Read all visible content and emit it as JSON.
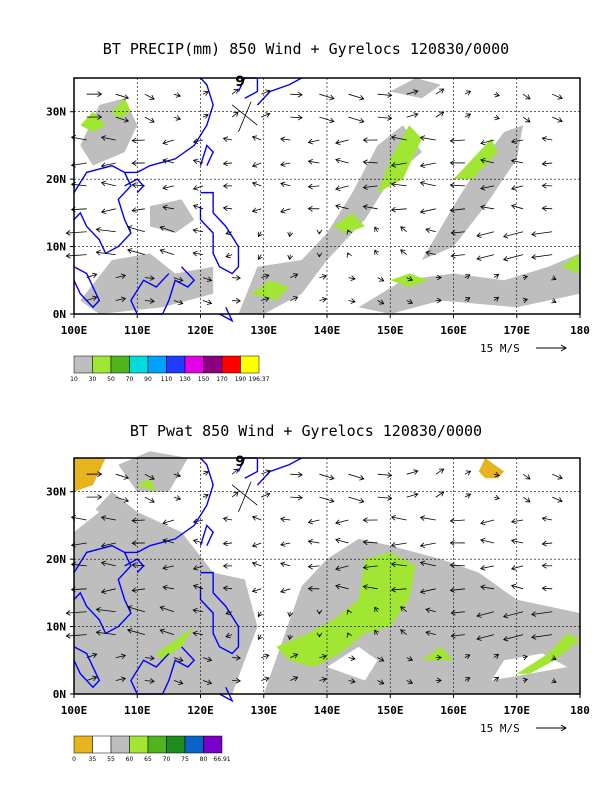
{
  "panels": [
    {
      "id": "precip",
      "title": "BT PRECIP(mm) 850 Wind + Gyrelocs 120830/0000",
      "xticks": [
        "100E",
        "110E",
        "120E",
        "130E",
        "140E",
        "150E",
        "160E",
        "170E",
        "180"
      ],
      "yticks": [
        "0N",
        "10N",
        "20N",
        "30N"
      ],
      "reference_vector": "15 M/S",
      "legend": {
        "labels": [
          "10",
          "30",
          "50",
          "70",
          "90",
          "110",
          "130",
          "150",
          "170",
          "190",
          "196.37"
        ],
        "colors": [
          "#bebebe",
          "#a0e632",
          "#50b41e",
          "#00dcdc",
          "#00a0ff",
          "#1e3cff",
          "#e600e6",
          "#8c0080",
          "#ff0000",
          "#ffff00"
        ]
      },
      "gyre_marker": "9"
    },
    {
      "id": "pwat",
      "title": "BT Pwat 850 Wind + Gyrelocs 120830/0000",
      "xticks": [
        "100E",
        "110E",
        "120E",
        "130E",
        "140E",
        "150E",
        "160E",
        "170E",
        "180"
      ],
      "yticks": [
        "0N",
        "10N",
        "20N",
        "30N"
      ],
      "reference_vector": "15 M/S",
      "legend": {
        "labels": [
          "0",
          "35",
          "55",
          "60",
          "65",
          "70",
          "75",
          "80",
          "66.91"
        ],
        "colors": [
          "#e6b41e",
          "#ffffff",
          "#bebebe",
          "#a0e632",
          "#50b41e",
          "#1e8c1e",
          "#0a64c8",
          "#7800c8"
        ]
      },
      "gyre_marker": "9"
    }
  ],
  "colors": {
    "coast": "#0000ff",
    "grid": "#000000",
    "arrow": "#000000"
  }
}
